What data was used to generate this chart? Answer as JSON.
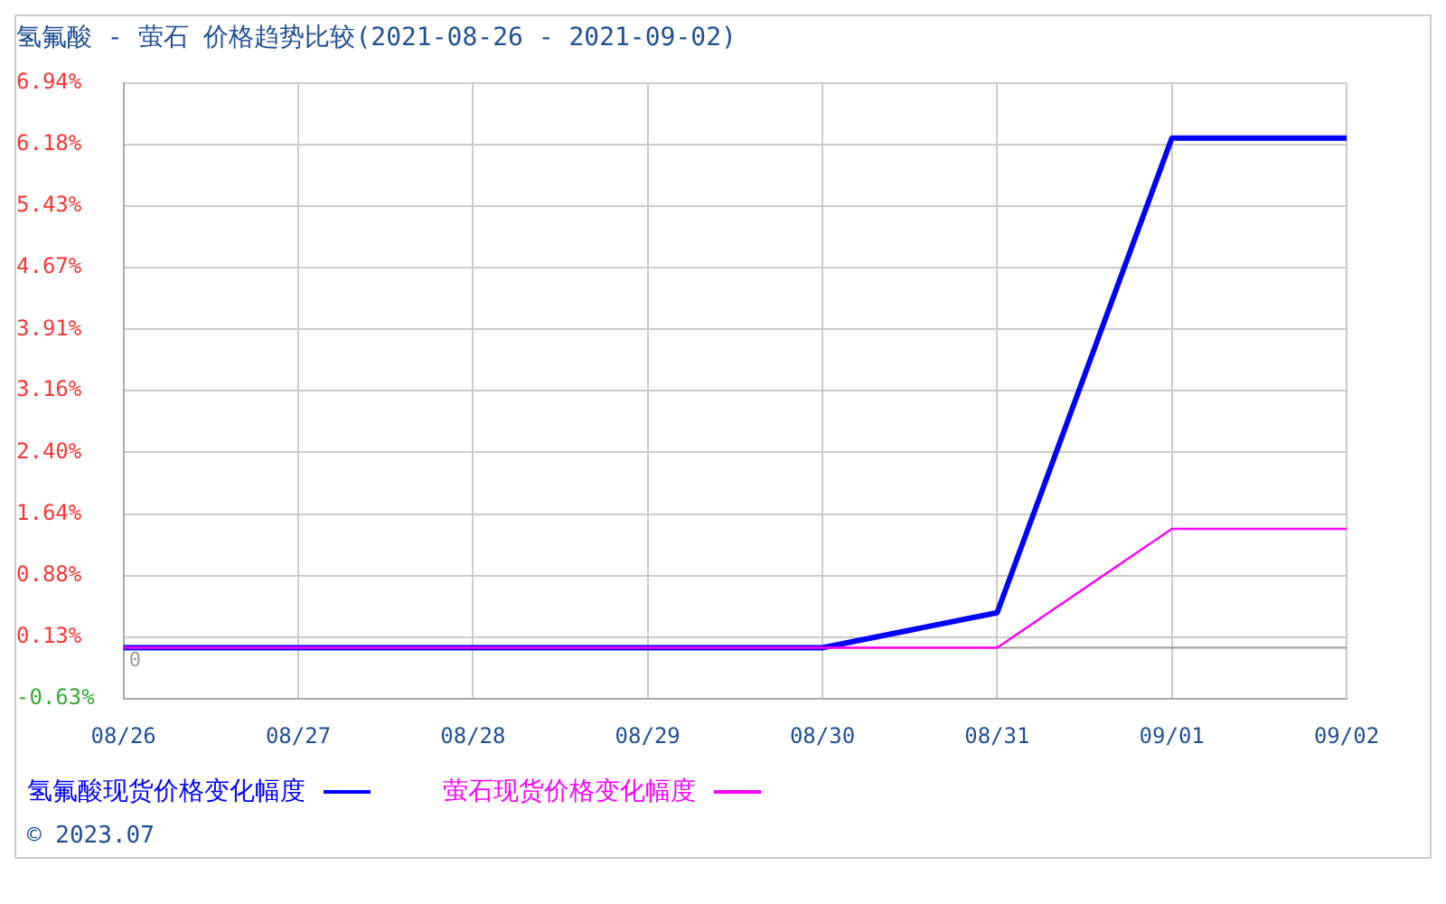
{
  "chart_data": {
    "type": "line",
    "title": "氢氟酸 - 萤石 价格趋势比较(2021-08-26 - 2021-09-02)",
    "categories": [
      "08/26",
      "08/27",
      "08/28",
      "08/29",
      "08/30",
      "08/31",
      "09/01",
      "09/02"
    ],
    "series": [
      {
        "name": "氢氟酸现货价格变化幅度",
        "color": "#0000ff",
        "values": [
          0,
          0,
          0,
          0,
          0,
          0.43,
          6.26,
          6.26
        ]
      },
      {
        "name": "萤石现货价格变化幅度",
        "color": "#ff00ff",
        "values": [
          0,
          0,
          0,
          0,
          0,
          0,
          1.46,
          1.46
        ]
      }
    ],
    "ylim": [
      -0.63,
      6.94
    ],
    "yticks": [
      {
        "value": -0.63,
        "label": "-0.63%"
      },
      {
        "value": 0.13,
        "label": "0.13%"
      },
      {
        "value": 0.88,
        "label": "0.88%"
      },
      {
        "value": 1.64,
        "label": "1.64%"
      },
      {
        "value": 2.4,
        "label": "2.40%"
      },
      {
        "value": 3.16,
        "label": "3.16%"
      },
      {
        "value": 3.91,
        "label": "3.91%"
      },
      {
        "value": 4.67,
        "label": "4.67%"
      },
      {
        "value": 5.43,
        "label": "5.43%"
      },
      {
        "value": 6.18,
        "label": "6.18%"
      },
      {
        "value": 6.94,
        "label": "6.94%"
      }
    ],
    "ref_lines": [
      {
        "axis": "y",
        "value": 0,
        "label": "0",
        "color": "#999999"
      }
    ],
    "grid": true,
    "legend": "bottom left",
    "marker": "none",
    "line_style": "solid",
    "annotations": [
      "© 2023.07"
    ]
  }
}
